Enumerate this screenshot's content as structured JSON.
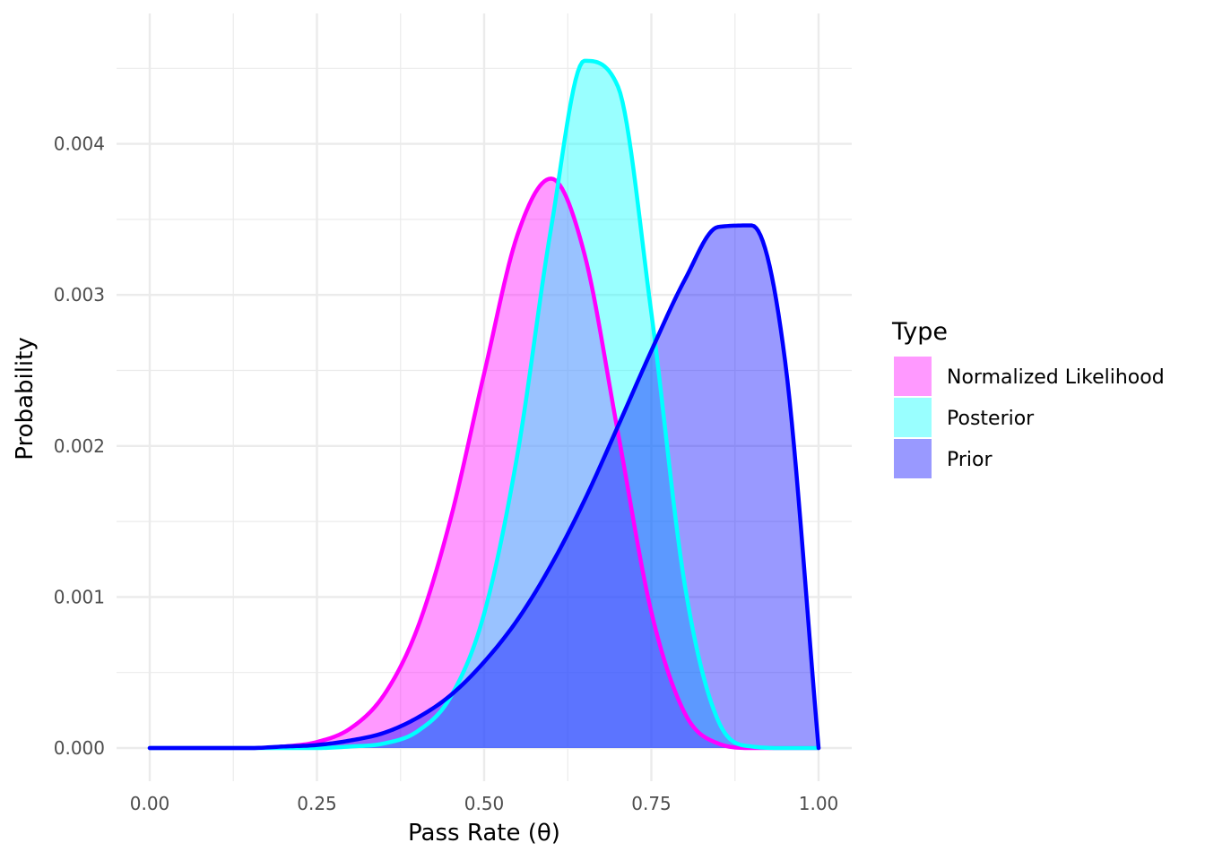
{
  "chart_data": {
    "type": "area",
    "xlabel": "Pass Rate (θ)",
    "ylabel": "Probability",
    "xlim": [
      0,
      1
    ],
    "ylim": [
      0,
      0.0047
    ],
    "x_ticks": [
      0,
      0.25,
      0.5,
      0.75,
      1
    ],
    "x_tick_labels": [
      "0.00",
      "0.25",
      "0.50",
      "0.75",
      "1.00"
    ],
    "y_ticks": [
      0,
      0.001,
      0.002,
      0.003,
      0.004
    ],
    "y_tick_labels": [
      "0.000",
      "0.001",
      "0.002",
      "0.003",
      "0.004"
    ],
    "grid": true,
    "legend": {
      "title": "Type",
      "position": "right"
    },
    "series": [
      {
        "name": "Normalized Likelihood",
        "fill": "#ff00ff",
        "line": "#ff00ff",
        "x": [
          0,
          0.05,
          0.1,
          0.15,
          0.2,
          0.25,
          0.3,
          0.35,
          0.4,
          0.45,
          0.5,
          0.55,
          0.6,
          0.65,
          0.7,
          0.75,
          0.8,
          0.85,
          0.9,
          0.95,
          1
        ],
        "values": [
          0,
          0,
          0,
          0,
          1e-05,
          4e-05,
          0.00013,
          0.00035,
          0.00079,
          0.00152,
          0.00248,
          0.0034,
          0.00377,
          0.00327,
          0.00209,
          0.0009,
          0.00023,
          3e-05,
          0,
          0,
          0
        ]
      },
      {
        "name": "Posterior",
        "fill": "#00ffff",
        "line": "#00ffff",
        "x": [
          0,
          0.05,
          0.1,
          0.15,
          0.2,
          0.25,
          0.3,
          0.35,
          0.4,
          0.45,
          0.5,
          0.55,
          0.6,
          0.65,
          0.7,
          0.75,
          0.8,
          0.85,
          0.9,
          0.95,
          1
        ],
        "values": [
          0,
          0,
          0,
          0,
          0,
          0,
          1e-05,
          3e-05,
          0.00011,
          0.00034,
          0.00089,
          0.00195,
          0.00344,
          0.00455,
          0.00438,
          0.00288,
          0.00108,
          0.00018,
          1e-05,
          0,
          0
        ]
      },
      {
        "name": "Prior",
        "fill": "#0000ff",
        "line": "#0000ff",
        "x": [
          0,
          0.05,
          0.1,
          0.15,
          0.2,
          0.25,
          0.3,
          0.35,
          0.4,
          0.45,
          0.5,
          0.55,
          0.6,
          0.65,
          0.7,
          0.75,
          0.8,
          0.85,
          0.9,
          0.95,
          1
        ],
        "values": [
          0,
          0,
          0,
          0,
          1e-05,
          2e-05,
          5e-05,
          0.0001,
          0.0002,
          0.00035,
          0.00057,
          0.00085,
          0.00121,
          0.00164,
          0.00213,
          0.00263,
          0.0031,
          0.00345,
          0.00346,
          0.00256,
          0
        ]
      }
    ]
  }
}
